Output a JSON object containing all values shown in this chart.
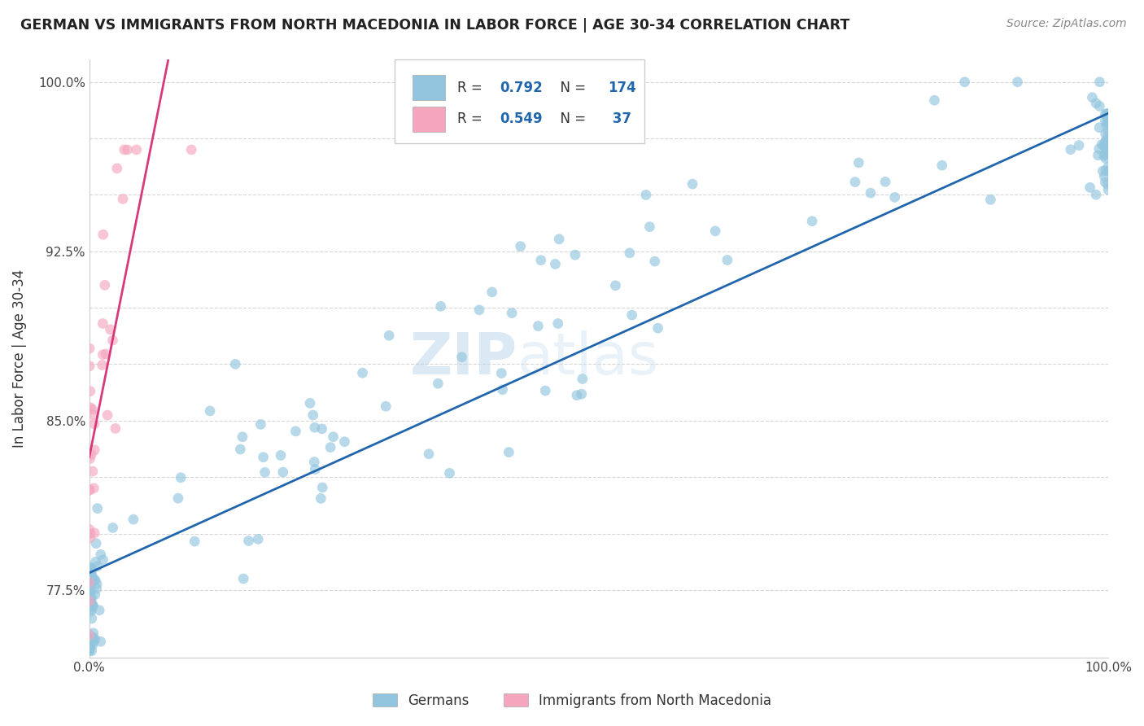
{
  "title": "GERMAN VS IMMIGRANTS FROM NORTH MACEDONIA IN LABOR FORCE | AGE 30-34 CORRELATION CHART",
  "source": "Source: ZipAtlas.com",
  "ylabel": "In Labor Force | Age 30-34",
  "xlim": [
    0.0,
    1.0
  ],
  "ylim": [
    0.745,
    1.01
  ],
  "ytick_positions": [
    0.775,
    0.8,
    0.825,
    0.85,
    0.875,
    0.9,
    0.925,
    0.95,
    0.975,
    1.0
  ],
  "ytick_labels": [
    "77.5%",
    "",
    "",
    "85.0%",
    "",
    "",
    "92.5%",
    "",
    "",
    "100.0%"
  ],
  "xticks": [
    0.0,
    1.0
  ],
  "xtick_labels": [
    "0.0%",
    "100.0%"
  ],
  "blue_color": "#92c5de",
  "pink_color": "#f4a6be",
  "blue_line_color": "#2166ac",
  "pink_line_color": "#d63a7a",
  "blue_r": 0.792,
  "blue_n": 174,
  "pink_r": 0.549,
  "pink_n": 37,
  "watermark_text": "ZIP",
  "watermark_text2": "atlas"
}
